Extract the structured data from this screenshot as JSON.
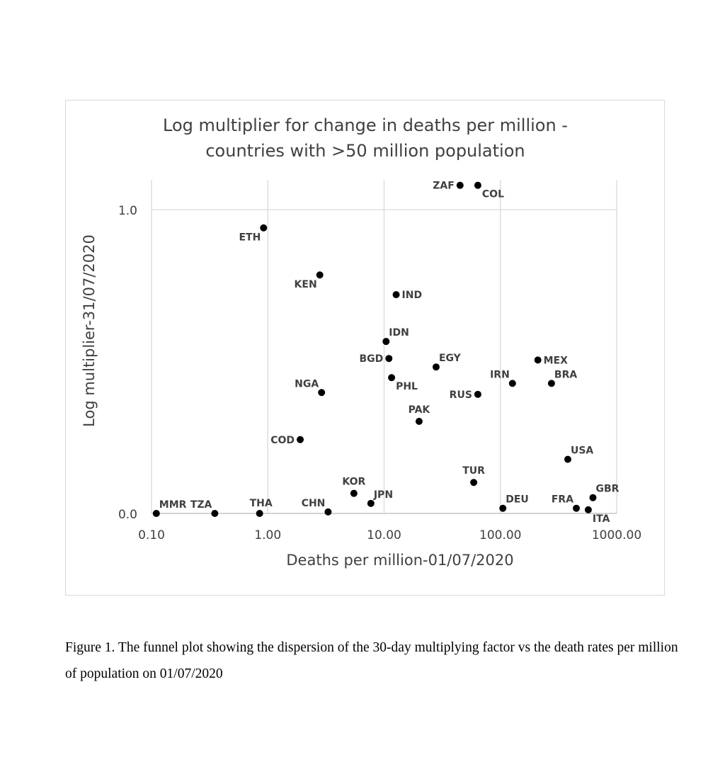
{
  "chart_data": {
    "type": "scatter",
    "title_lines": [
      "Log multiplier for change in deaths per million -",
      "countries with >50 million population"
    ],
    "xlabel": "Deaths per million-01/07/2020",
    "ylabel": "Log multiplier-31/07/2020",
    "xscale": "log",
    "xlim": [
      0.1,
      1000
    ],
    "ylim": [
      0,
      1.08
    ],
    "xticks": [
      {
        "value": 0.1,
        "label": "0.10"
      },
      {
        "value": 1,
        "label": "1.00"
      },
      {
        "value": 10,
        "label": "10.00"
      },
      {
        "value": 100,
        "label": "100.00"
      },
      {
        "value": 1000,
        "label": "1000.00"
      }
    ],
    "yticks": [
      {
        "value": 0,
        "label": "0.0"
      },
      {
        "value": 1,
        "label": "1.0"
      }
    ],
    "grid": true,
    "marker_color": "#000000",
    "points": [
      {
        "label": "MMR",
        "x": 0.11,
        "y": 0.0,
        "pos": "ne"
      },
      {
        "label": "TZA",
        "x": 0.35,
        "y": 0.0,
        "pos": "nw"
      },
      {
        "label": "THA",
        "x": 0.85,
        "y": 0.0,
        "pos": "nn"
      },
      {
        "label": "ETH",
        "x": 0.92,
        "y": 0.94,
        "pos": "sw"
      },
      {
        "label": "COD",
        "x": 1.9,
        "y": 0.243,
        "pos": "w"
      },
      {
        "label": "KEN",
        "x": 2.8,
        "y": 0.785,
        "pos": "sw"
      },
      {
        "label": "NGA",
        "x": 2.9,
        "y": 0.398,
        "pos": "nw"
      },
      {
        "label": "CHN",
        "x": 3.3,
        "y": 0.005,
        "pos": "nw"
      },
      {
        "label": "KOR",
        "x": 5.5,
        "y": 0.066,
        "pos": "n"
      },
      {
        "label": "JPN",
        "x": 7.7,
        "y": 0.033,
        "pos": "ne"
      },
      {
        "label": "IDN",
        "x": 10.4,
        "y": 0.566,
        "pos": "ne"
      },
      {
        "label": "BGD",
        "x": 11.0,
        "y": 0.51,
        "pos": "w"
      },
      {
        "label": "PHL",
        "x": 11.6,
        "y": 0.447,
        "pos": "se"
      },
      {
        "label": "IND",
        "x": 12.7,
        "y": 0.72,
        "pos": "e"
      },
      {
        "label": "PAK",
        "x": 20.0,
        "y": 0.303,
        "pos": "n"
      },
      {
        "label": "EGY",
        "x": 28.0,
        "y": 0.482,
        "pos": "ne"
      },
      {
        "label": "ZAF",
        "x": 45.0,
        "y": 1.08,
        "pos": "w"
      },
      {
        "label": "TUR",
        "x": 59.0,
        "y": 0.102,
        "pos": "n"
      },
      {
        "label": "COL",
        "x": 64.0,
        "y": 1.08,
        "pos": "se"
      },
      {
        "label": "RUS",
        "x": 64.0,
        "y": 0.392,
        "pos": "w"
      },
      {
        "label": "DEU",
        "x": 105.0,
        "y": 0.017,
        "pos": "ne"
      },
      {
        "label": "IRN",
        "x": 127.0,
        "y": 0.428,
        "pos": "nw"
      },
      {
        "label": "MEX",
        "x": 210.0,
        "y": 0.505,
        "pos": "e"
      },
      {
        "label": "BRA",
        "x": 275.0,
        "y": 0.428,
        "pos": "ne"
      },
      {
        "label": "USA",
        "x": 380.0,
        "y": 0.178,
        "pos": "ne"
      },
      {
        "label": "FRA",
        "x": 450.0,
        "y": 0.017,
        "pos": "nw"
      },
      {
        "label": "ITA",
        "x": 570.0,
        "y": 0.012,
        "pos": "se"
      },
      {
        "label": "GBR",
        "x": 625.0,
        "y": 0.052,
        "pos": "ne"
      }
    ]
  },
  "caption": {
    "text": "Figure 1. The funnel plot showing the dispersion of the 30-day multiplying factor vs the death rates per million of population on 01/07/2020"
  }
}
